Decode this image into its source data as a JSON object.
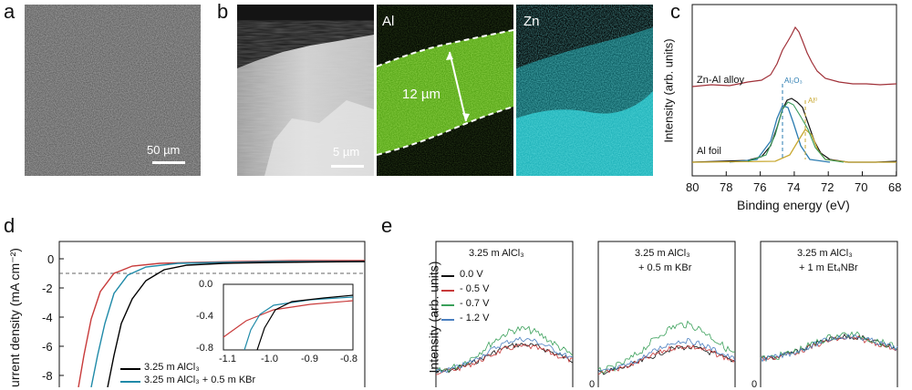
{
  "panel_labels": {
    "a": "a",
    "b": "b",
    "c": "c",
    "d": "d",
    "e": "e"
  },
  "panel_a": {
    "scale_bar": "50 µm"
  },
  "panel_b": {
    "scale_bar": "5 µm",
    "thickness": "12 µm",
    "map_al": "Al",
    "map_zn": "Zn"
  },
  "panel_c": {
    "ylabel": "Intensity (arb. units)",
    "xlabel": "Binding energy (eV)",
    "xticks": [
      "80",
      "78",
      "76",
      "74",
      "72",
      "70",
      "68"
    ],
    "trace_top": "Zn-Al alloy",
    "trace_bottom": "Al foil",
    "peak_oxide": "Al₂O₃",
    "peak_metal": "Al⁰",
    "colors": {
      "alloy": "#a03038",
      "fit1": "#2a7bb0",
      "fit2": "#c8a830",
      "raw": "#111111",
      "sum": "#3a9a5a"
    }
  },
  "panel_d": {
    "ylabel": "urrent density (mA cm⁻²)",
    "yticks": [
      "0",
      "-2",
      "-4",
      "-6",
      "-8"
    ],
    "inset_yticks": [
      "0.0",
      "-0.4",
      "-0.8"
    ],
    "inset_xticks": [
      "-1.1",
      "-1.0",
      "-0.9",
      "-0.8"
    ],
    "legend": [
      {
        "label": "3.25 m AlCl₃",
        "color": "#000000"
      },
      {
        "label": "3.25 m AlCl₃ + 0.5 m KBr",
        "color": "#1f8aa8"
      }
    ],
    "series_colors": {
      "a": "#000000",
      "b": "#1f8aa8",
      "c": "#c83a3a"
    }
  },
  "panel_e": {
    "ylabel": "Intensity (arb. units)",
    "subpanels": [
      {
        "title1": "3.25 m AlCl₃",
        "title2": ""
      },
      {
        "title1": "3.25 m AlCl₃",
        "title2": "+ 0.5 m KBr"
      },
      {
        "title1": "3.25 m AlCl₃",
        "title2": "+ 1 m Et₄NBr"
      }
    ],
    "legend": [
      {
        "label": "0.0 V",
        "color": "#111111"
      },
      {
        "label": "- 0.5 V",
        "color": "#c83a3a"
      },
      {
        "label": "- 0.7 V",
        "color": "#3aa05a"
      },
      {
        "label": "- 1.2 V",
        "color": "#4a7fc0"
      }
    ],
    "axis_zero": "0"
  }
}
